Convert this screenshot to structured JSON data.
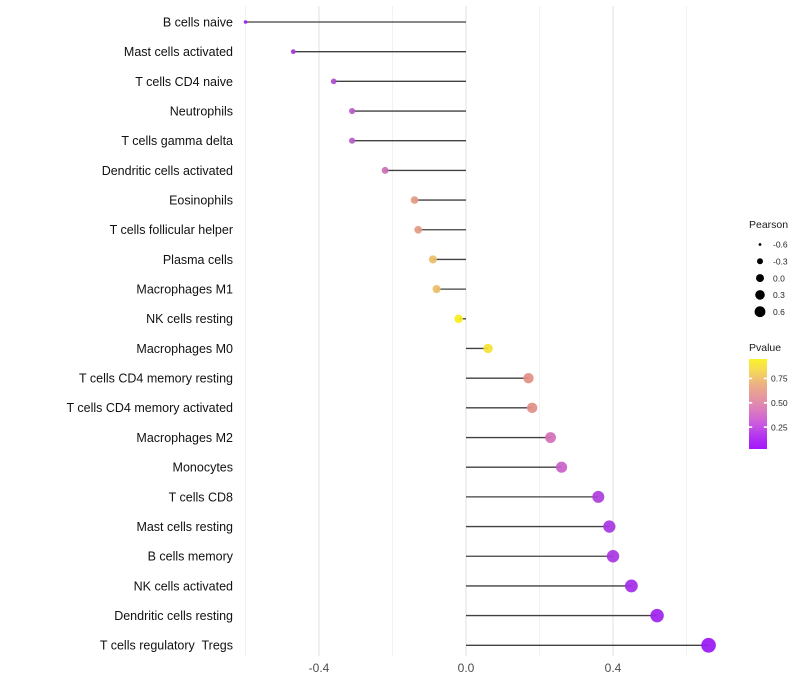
{
  "chart_data": {
    "type": "lollipop",
    "title": "",
    "xlabel": "",
    "ylabel": "",
    "x_tick_labels": [
      "-0.4",
      "0.0",
      "0.4"
    ],
    "x_tick_values": [
      -0.4,
      0.0,
      0.4
    ],
    "x_minor_grid": [
      -0.6,
      -0.2,
      0.2,
      0.6
    ],
    "xlim": [
      -0.62,
      0.72
    ],
    "grid": "vertical-only",
    "rows": [
      {
        "label": "B cells naive",
        "pearson": -0.6,
        "pvalue": 0.02,
        "color": "#9D18F0"
      },
      {
        "label": "Mast cells activated",
        "pearson": -0.47,
        "pvalue": 0.08,
        "color": "#A335E0"
      },
      {
        "label": "T cells CD4 naive",
        "pearson": -0.36,
        "pvalue": 0.14,
        "color": "#AF4DD2"
      },
      {
        "label": "Neutrophils",
        "pearson": -0.31,
        "pvalue": 0.18,
        "color": "#B65BCA"
      },
      {
        "label": "T cells gamma delta",
        "pearson": -0.31,
        "pvalue": 0.18,
        "color": "#B65BCA"
      },
      {
        "label": "Dendritic cells activated",
        "pearson": -0.22,
        "pvalue": 0.3,
        "color": "#CB6FB5"
      },
      {
        "label": "Eosinophils",
        "pearson": -0.14,
        "pvalue": 0.55,
        "color": "#E39B83"
      },
      {
        "label": "T cells follicular helper",
        "pearson": -0.13,
        "pvalue": 0.55,
        "color": "#E39B83"
      },
      {
        "label": "Plasma cells",
        "pearson": -0.09,
        "pvalue": 0.7,
        "color": "#ECBE67"
      },
      {
        "label": "Macrophages M1",
        "pearson": -0.08,
        "pvalue": 0.7,
        "color": "#ECBE67"
      },
      {
        "label": "NK cells resting",
        "pearson": -0.02,
        "pvalue": 0.92,
        "color": "#F9EE21"
      },
      {
        "label": "Macrophages M0",
        "pearson": 0.06,
        "pvalue": 0.86,
        "color": "#F6E232"
      },
      {
        "label": "T cells CD4 memory resting",
        "pearson": 0.17,
        "pvalue": 0.5,
        "color": "#E18E85"
      },
      {
        "label": "T cells CD4 memory activated",
        "pearson": 0.18,
        "pvalue": 0.5,
        "color": "#E18E85"
      },
      {
        "label": "Macrophages M2",
        "pearson": 0.23,
        "pvalue": 0.32,
        "color": "#D36FB9"
      },
      {
        "label": "Monocytes",
        "pearson": 0.26,
        "pvalue": 0.24,
        "color": "#C95FC9"
      },
      {
        "label": "T cells CD8",
        "pearson": 0.36,
        "pvalue": 0.12,
        "color": "#AC3DDC"
      },
      {
        "label": "Mast cells resting",
        "pearson": 0.39,
        "pvalue": 0.1,
        "color": "#A835E2"
      },
      {
        "label": "B cells memory",
        "pearson": 0.4,
        "pvalue": 0.1,
        "color": "#A835E2"
      },
      {
        "label": "NK cells activated",
        "pearson": 0.45,
        "pvalue": 0.07,
        "color": "#A32BE8"
      },
      {
        "label": "Dendritic cells resting",
        "pearson": 0.52,
        "pvalue": 0.05,
        "color": "#9E22EE"
      },
      {
        "label": "T cells regulatory  Tregs",
        "pearson": 0.66,
        "pvalue": 0.03,
        "color": "#9817F5"
      }
    ],
    "legend_size": {
      "title": "Pearson",
      "values": [
        -0.6,
        -0.3,
        0.0,
        0.3,
        0.6
      ],
      "labels": [
        "-0.6",
        "-0.3",
        "0.0",
        "0.3",
        "0.6"
      ],
      "dot_color": "#000000"
    },
    "legend_color": {
      "title": "Pvalue",
      "tick_labels": [
        "0.75",
        "0.50",
        "0.25"
      ],
      "tick_values": [
        0.75,
        0.5,
        0.25
      ],
      "range": [
        0.025,
        0.95
      ],
      "gradient_top_to_bottom": [
        "#FBF22C",
        "#F4D65C",
        "#ECAF85",
        "#E596A0",
        "#DB7BC0",
        "#CB5BDE",
        "#B335F0",
        "#A517FB"
      ]
    },
    "colors": {
      "stem": "#414141",
      "major_grid": "#E4E4E4",
      "minor_grid": "#EDEDED",
      "axis_text": "#4D4D4D",
      "category_text": "#111111",
      "background": "#FFFFFF"
    }
  }
}
